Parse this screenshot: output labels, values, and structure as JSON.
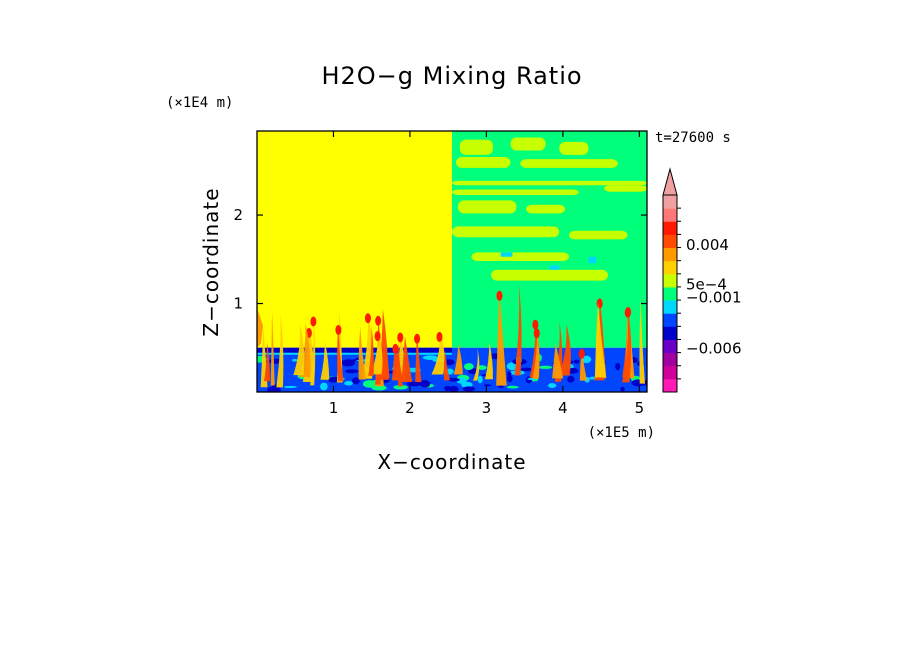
{
  "chart_data": {
    "type": "heatmap",
    "title": "H2O−g Mixing Ratio",
    "xlabel": "X−coordinate",
    "ylabel": "Z−coordinate",
    "x_unit": "(×1E5 m)",
    "y_unit": "(×1E4 m)",
    "time_label": "t=27600 s",
    "xlim": [
      0,
      5.1
    ],
    "ylim": [
      0,
      2.95
    ],
    "x_ticks": [
      1,
      2,
      3,
      4,
      5
    ],
    "y_ticks": [
      1,
      2
    ],
    "x_tick_labels": [
      "1",
      "2",
      "3",
      "4",
      "5"
    ],
    "y_tick_labels": [
      "1",
      "2"
    ],
    "colorbar": {
      "colors": [
        "#ff1ab4",
        "#d0009a",
        "#a0009e",
        "#6a00c8",
        "#0000c8",
        "#0046ff",
        "#00d7ff",
        "#00ff7a",
        "#c8ff00",
        "#ffd000",
        "#ff9a00",
        "#ff4a00",
        "#ff1a00",
        "#ff7878",
        "#f0a0a0"
      ],
      "labels": [
        "0.004",
        "5e−4",
        "−0.001",
        "−0.006"
      ]
    },
    "regions": [
      {
        "name": "upper-left-uniform",
        "x": [
          0,
          2.55
        ],
        "z": [
          0.5,
          2.95
        ],
        "color": "#ffff00"
      },
      {
        "name": "upper-right-mixed",
        "x": [
          2.55,
          5.1
        ],
        "z": [
          0.5,
          2.95
        ],
        "color": "#00ff7a"
      },
      {
        "name": "boundary-layer",
        "x": [
          0,
          5.1
        ],
        "z": [
          0,
          0.5
        ],
        "color": "#0046ff"
      }
    ]
  }
}
